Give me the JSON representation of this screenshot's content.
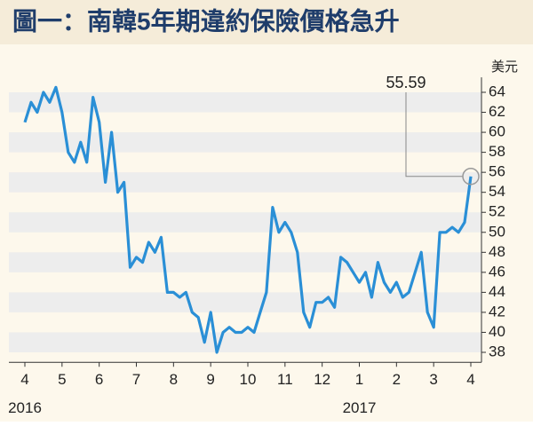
{
  "chart_data": {
    "type": "line",
    "title": "圖一：南韓5年期違約保險價格急升",
    "y_unit": "美元",
    "categories": [
      "4",
      null,
      null,
      null,
      null,
      null,
      "5",
      null,
      null,
      null,
      null,
      null,
      "6",
      null,
      null,
      null,
      null,
      null,
      "7",
      null,
      null,
      null,
      null,
      null,
      "8",
      null,
      null,
      null,
      null,
      null,
      "9",
      null,
      null,
      null,
      null,
      null,
      "10",
      null,
      null,
      null,
      null,
      null,
      "11",
      null,
      null,
      null,
      null,
      null,
      "12",
      null,
      null,
      null,
      null,
      null,
      "1",
      null,
      null,
      null,
      null,
      null,
      "2",
      null,
      null,
      null,
      null,
      null,
      "3",
      null,
      null,
      null,
      null,
      null,
      "4"
    ],
    "years": [
      "2016",
      "2017"
    ],
    "values": [
      61,
      63,
      62,
      64,
      63,
      64.5,
      62,
      58,
      57,
      59,
      57,
      63.5,
      61,
      55,
      60,
      54,
      55,
      46.5,
      47.5,
      47,
      49,
      48,
      49.5,
      44,
      44,
      43.5,
      44,
      42,
      41.5,
      39,
      42,
      38,
      40,
      40.5,
      40,
      40,
      40.5,
      40,
      42,
      44,
      52.5,
      50,
      51,
      50,
      48,
      42,
      40.5,
      43,
      43,
      43.5,
      42.5,
      47.5,
      47,
      46,
      45,
      46,
      43.5,
      47,
      45,
      44,
      45,
      43.5,
      44,
      46,
      48,
      42,
      40.5,
      50,
      50,
      50.5,
      50,
      51,
      55.59
    ],
    "value_labels": {
      "72": "55.59"
    },
    "color": "#2a8fd6",
    "ylim": [
      37,
      65.5
    ],
    "yticks": [
      38,
      40,
      42,
      44,
      46,
      48,
      50,
      52,
      54,
      56,
      58,
      60,
      62,
      64
    ],
    "grid": true
  }
}
